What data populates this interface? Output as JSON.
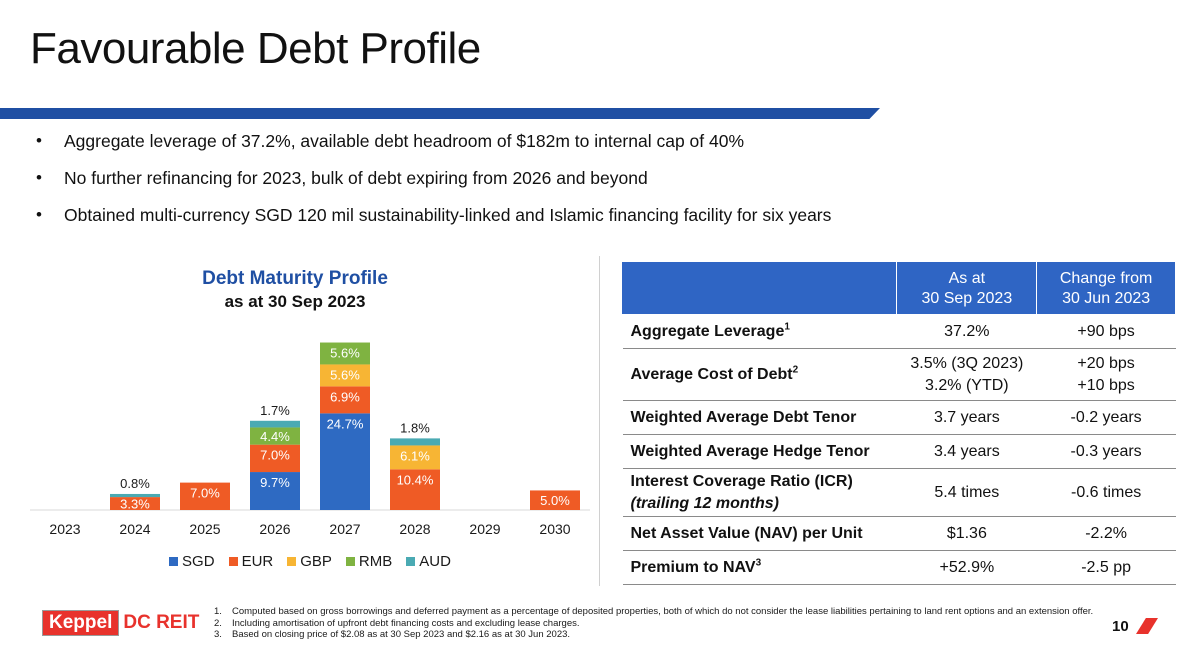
{
  "title": "Favourable Debt Profile",
  "bullets": [
    "Aggregate leverage of 37.2%, available debt headroom of $182m to internal cap of 40%",
    "No further refinancing for 2023, bulk of debt expiring from 2026 and beyond",
    "Obtained multi-currency SGD 120 mil sustainability-linked and Islamic financing facility for six years"
  ],
  "chart_title": "Debt Maturity Profile",
  "chart_subtitle": "as at 30 Sep 2023",
  "colors": {
    "brand_blue": "#1f4fa3",
    "table_header": "#2f65c4",
    "brand_red": "#e8322c"
  },
  "chart_data": {
    "type": "bar",
    "stacked": true,
    "categories": [
      "2023",
      "2024",
      "2025",
      "2026",
      "2027",
      "2028",
      "2029",
      "2030"
    ],
    "series": [
      {
        "name": "SGD",
        "color": "#2e6ac2",
        "values": [
          0,
          0,
          0,
          9.7,
          24.7,
          0,
          0,
          0
        ]
      },
      {
        "name": "EUR",
        "color": "#ef5b25",
        "values": [
          0,
          3.3,
          7.0,
          7.0,
          6.9,
          10.4,
          0,
          5.0
        ]
      },
      {
        "name": "GBP",
        "color": "#f7b534",
        "values": [
          0,
          0,
          0,
          0,
          5.6,
          6.1,
          0,
          0
        ]
      },
      {
        "name": "RMB",
        "color": "#7fb341",
        "values": [
          0,
          0,
          0,
          4.4,
          5.6,
          0,
          0,
          0
        ]
      },
      {
        "name": "AUD",
        "color": "#4aaab3",
        "values": [
          0,
          0.8,
          0,
          1.7,
          0,
          1.8,
          0,
          0
        ]
      }
    ],
    "data_labels": "percent",
    "legend": "bottom",
    "grid": false,
    "ylim": [
      0,
      46
    ]
  },
  "table": {
    "header": [
      "",
      "As at\n30 Sep 2023",
      "Change from\n30 Jun 2023"
    ],
    "rows": [
      {
        "label": "Aggregate Leverage",
        "sup": "1",
        "value": "37.2%",
        "change": "+90 bps"
      },
      {
        "label": "Average Cost of Debt",
        "sup": "2",
        "value": "3.5% (3Q 2023)\n3.2% (YTD)",
        "change": "+20 bps\n+10 bps"
      },
      {
        "label": "Weighted Average Debt Tenor",
        "sup": "",
        "value": "3.7 years",
        "change": "-0.2 years"
      },
      {
        "label": "Weighted Average Hedge Tenor",
        "sup": "",
        "value": "3.4 years",
        "change": "-0.3 years"
      },
      {
        "label": "Interest Coverage Ratio (ICR)",
        "label_italic": "(trailing 12 months)",
        "sup": "",
        "value": "5.4 times",
        "change": "-0.6 times"
      },
      {
        "label": "Net Asset Value (NAV) per Unit",
        "sup": "",
        "value": "$1.36",
        "change": "-2.2%"
      },
      {
        "label": "Premium to NAV",
        "sup": "3",
        "value": "+52.9%",
        "change": "-2.5 pp"
      }
    ]
  },
  "logo": {
    "box_text": "Keppel",
    "text": "DC REIT"
  },
  "footnotes": [
    {
      "num": "1.",
      "text": "Computed based on gross borrowings and deferred payment as a percentage of deposited properties, both of which do not consider the lease liabilities pertaining to land rent options and an extension offer."
    },
    {
      "num": "2.",
      "text": "Including amortisation of upfront debt financing costs and excluding lease charges."
    },
    {
      "num": "3.",
      "text": "Based on closing price of $2.08 as at 30 Sep 2023 and $2.16 as at 30 Jun 2023."
    }
  ],
  "page_number": "10"
}
